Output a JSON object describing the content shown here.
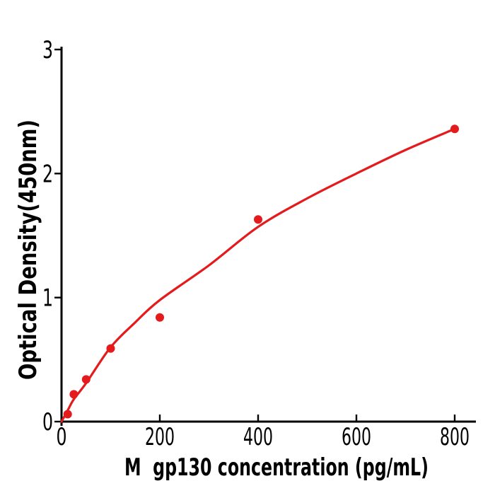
{
  "chart_data": {
    "type": "scatter",
    "title": "",
    "xlabel": "M  gp130 concentration (pg/mL)",
    "ylabel": "Optical Density(450nm)",
    "series": [
      {
        "name": "standard-points",
        "type": "scatter",
        "x": [
          12.5,
          25,
          50,
          100,
          200,
          400,
          800
        ],
        "y": [
          0.06,
          0.22,
          0.34,
          0.59,
          0.84,
          1.63,
          2.36
        ]
      },
      {
        "name": "fitted-curve",
        "type": "line",
        "points": [
          [
            0,
            0.0
          ],
          [
            12.5,
            0.09
          ],
          [
            25,
            0.18
          ],
          [
            50,
            0.31
          ],
          [
            100,
            0.6
          ],
          [
            150,
            0.8
          ],
          [
            200,
            0.98
          ],
          [
            300,
            1.26
          ],
          [
            400,
            1.57
          ],
          [
            500,
            1.8
          ],
          [
            600,
            2.0
          ],
          [
            700,
            2.19
          ],
          [
            800,
            2.36
          ]
        ]
      }
    ],
    "xticks": {
      "values": [
        0,
        200,
        400,
        600,
        800
      ],
      "labels": [
        "0",
        "200",
        "400",
        "600",
        "800"
      ]
    },
    "yticks": {
      "values": [
        0,
        1,
        2,
        3
      ],
      "labels": [
        "0",
        "1",
        "2",
        "3"
      ]
    },
    "xlim": [
      0,
      800
    ],
    "ylim": [
      0,
      3
    ],
    "grid": false,
    "legend": null,
    "colors": {
      "points": "#e41a1c",
      "curve": "#e41a1c",
      "axis": "#000000",
      "text": "#000000",
      "background": "#ffffff"
    }
  }
}
